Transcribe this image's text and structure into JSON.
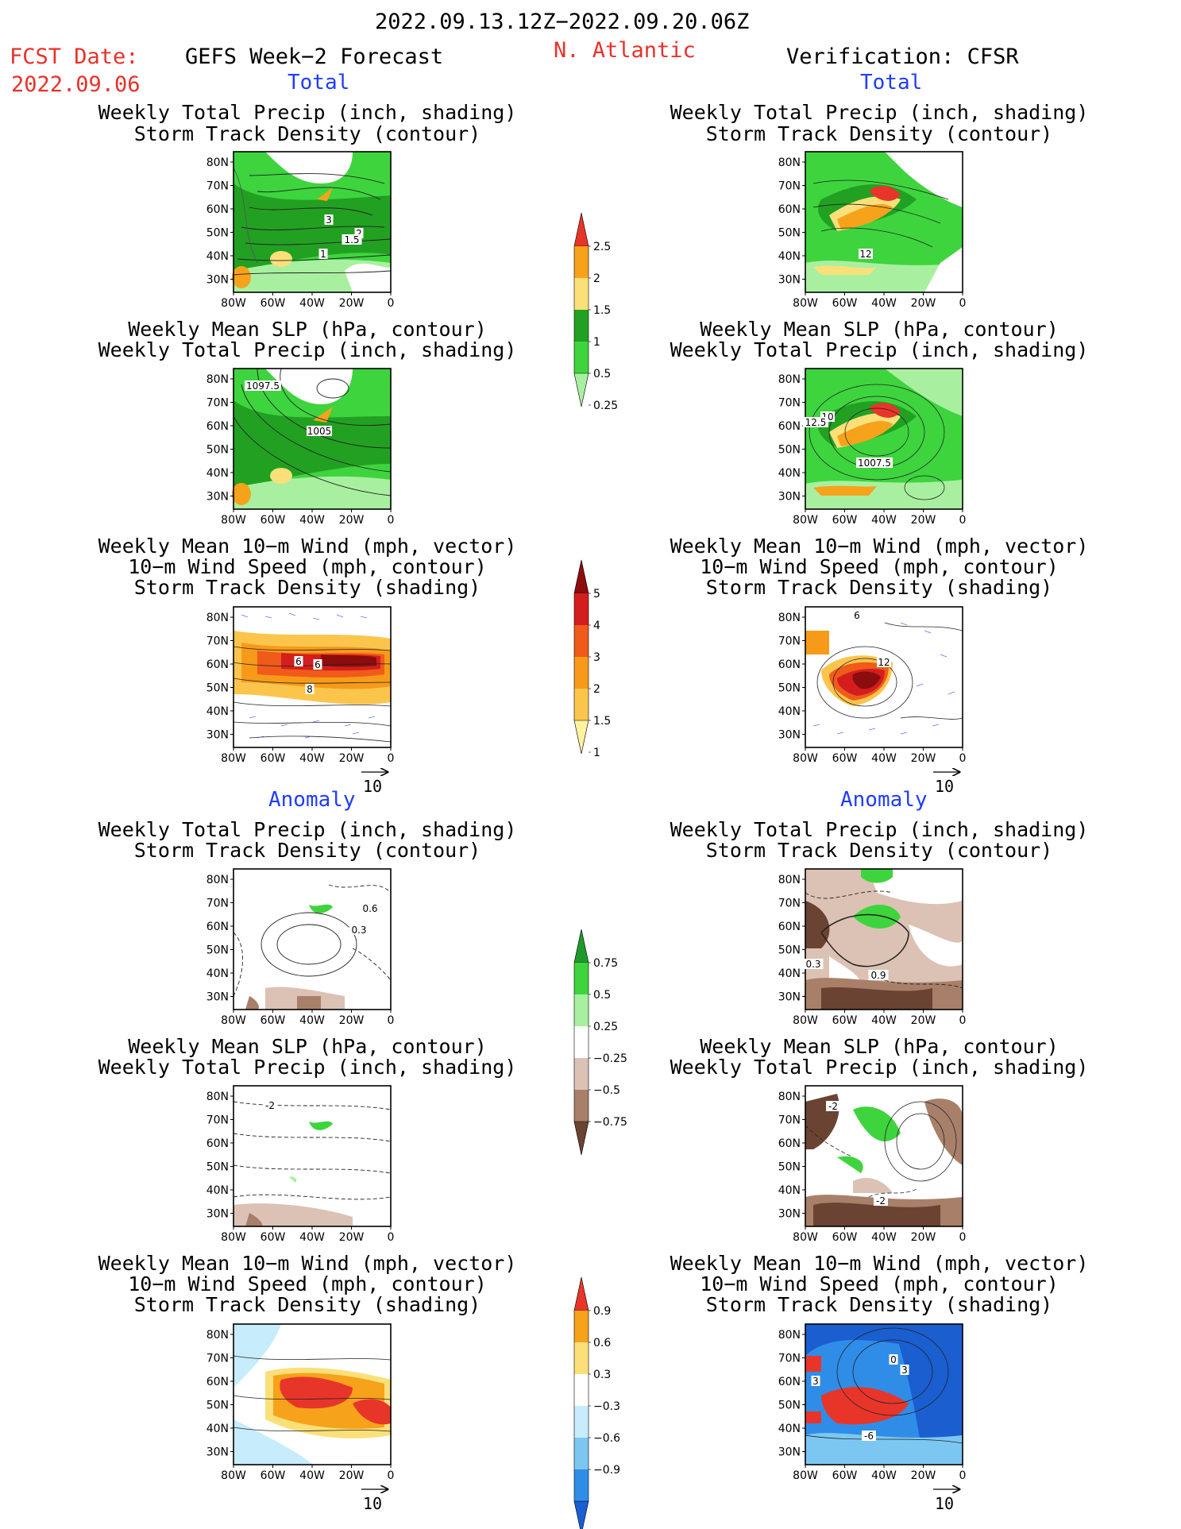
{
  "header": {
    "date_range": "2022.09.13.12Z−2022.09.20.06Z",
    "fcst_label": "FCST Date:",
    "fcst_date": "2022.09.06",
    "model": "GEFS Week−2 Forecast",
    "region": "N. Atlantic",
    "verification": "Verification: CFSR"
  },
  "sections": {
    "total": "Total",
    "anomaly": "Anomaly"
  },
  "titles": {
    "precip_track": [
      "Weekly Total Precip (inch, shading)",
      "Storm Track Density (contour)"
    ],
    "slp_precip": [
      "Weekly Mean SLP (hPa, contour)",
      "Weekly Total Precip (inch, shading)"
    ],
    "wind_track": [
      "Weekly Mean 10−m Wind (mph, vector)",
      "10−m Wind Speed (mph, contour)",
      "Storm Track Density (shading)"
    ]
  },
  "axes": {
    "lat_ticks": [
      "80N",
      "70N",
      "60N",
      "50N",
      "40N",
      "30N"
    ],
    "lon_ticks": [
      "80W",
      "60W",
      "40W",
      "20W",
      "0"
    ]
  },
  "vector_ref": "10",
  "contour_labels": {
    "fc_precip_track": [
      "3",
      "2",
      "1.5",
      "1"
    ],
    "fc_slp_precip": [
      "1097.5",
      "1005"
    ],
    "fc_wind_track": [
      "6",
      "6",
      "8"
    ],
    "fc_anom_precip": [
      "0.6",
      "0.3"
    ],
    "fc_anom_slp": [
      "-2"
    ],
    "ver_precip_track": [
      "12"
    ],
    "ver_slp_precip": [
      "10",
      "12.5",
      "1007.5"
    ],
    "ver_wind_track": [
      "6",
      "12"
    ],
    "ver_anom_precip": [
      "0.3",
      "0.9"
    ],
    "ver_anom_slp": [
      "-2",
      "-2"
    ],
    "ver_anom_wind": [
      "0",
      "3",
      "3",
      "-6"
    ]
  },
  "colorbars": {
    "precip": {
      "labels": [
        "2.5",
        "2",
        "1.5",
        "1",
        "0.5",
        "0.25"
      ],
      "colors": [
        "#e8352a",
        "#f7a21b",
        "#fbe07a",
        "#22a022",
        "#3ed43e",
        "#a8f0a0"
      ]
    },
    "track": {
      "labels": [
        "5",
        "4",
        "3",
        "2",
        "1.5",
        "1"
      ],
      "colors": [
        "#8b0d0d",
        "#d41e1e",
        "#f05a1a",
        "#f79a1a",
        "#fbc54c",
        "#fff2a0"
      ]
    },
    "precip_anom": {
      "labels": [
        "0.75",
        "0.5",
        "0.25",
        "−0.25",
        "−0.5",
        "−0.75"
      ],
      "colors": [
        "#1f9a2a",
        "#3ed43e",
        "#a8f0a0",
        "#ffffff",
        "#dcc2b4",
        "#a8806a",
        "#6b4332"
      ]
    },
    "track_anom": {
      "labels": [
        "0.9",
        "0.6",
        "0.3",
        "−0.3",
        "−0.6",
        "−0.9"
      ],
      "colors": [
        "#e8352a",
        "#f7a21b",
        "#fbe07a",
        "#ffffff",
        "#c7ecfb",
        "#7cc7f2",
        "#2f8de8",
        "#1a5ed0"
      ]
    }
  }
}
